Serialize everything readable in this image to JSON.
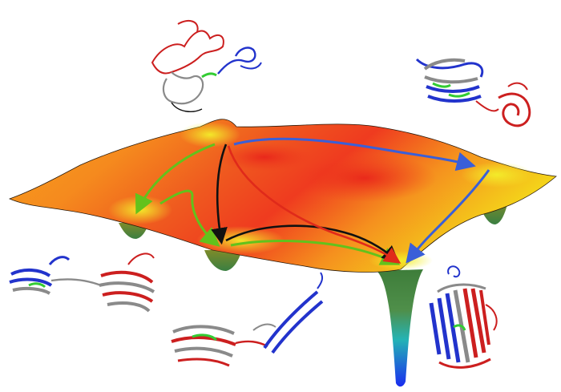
{
  "figure": {
    "description_type": "folding-energy-landscape",
    "surface": {
      "colormap": [
        "#1e3cff",
        "#1fb8b0",
        "#3c8c3c",
        "#e8e61a",
        "#f7a21b",
        "#ef3b1f"
      ]
    },
    "pathways": [
      {
        "color": "#3a5fd8",
        "label": ""
      },
      {
        "color": "#62c21c",
        "label": ""
      },
      {
        "color": "#111111",
        "label": ""
      },
      {
        "color": "#e02a1a",
        "label": ""
      }
    ],
    "structures": [
      {
        "icon": "unfolded-protein-icon"
      },
      {
        "icon": "partially-folded-protein-icon"
      },
      {
        "icon": "split-domain-protein-icon"
      },
      {
        "icon": "intermediate-protein-icon"
      },
      {
        "icon": "native-beta-barrel-icon"
      }
    ],
    "domain_colors": {
      "n_terminal": "#2233cc",
      "middle": "#8a8a8a",
      "linker": "#33cc33",
      "c_terminal": "#cc1f1f"
    }
  }
}
